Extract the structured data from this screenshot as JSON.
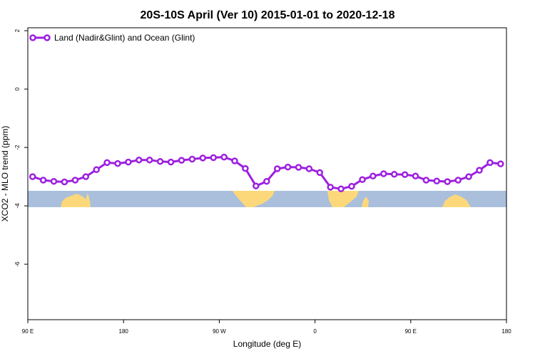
{
  "chart_data": {
    "type": "line",
    "title": "20S-10S April (Ver 10)   2015-01-01 to 2020-12-18",
    "xlabel": "Longitude (deg E)",
    "ylabel": "XCO2 - MLO trend (ppm)",
    "xlim": [
      90,
      450
    ],
    "ylim": [
      -7.9,
      2.1
    ],
    "x_tick_values": [
      90,
      162,
      234,
      306,
      378,
      450
    ],
    "x_tick_labels": [
      "90 E",
      "180",
      "90 W",
      "0",
      "90 E",
      "180"
    ],
    "y_tick_values": [
      -6,
      -4,
      -2,
      0,
      2
    ],
    "y_tick_labels": [
      "-6",
      "-4",
      "-2",
      "0",
      "2"
    ],
    "grid": false,
    "legend_position": "top-left",
    "series": [
      {
        "name": "Land (Nadir&Glint) and Ocean (Glint)",
        "color": "#9d1fe0",
        "x": [
          93.6,
          101.6,
          109.6,
          117.6,
          125.6,
          133.6,
          141.6,
          149.6,
          157.6,
          165.6,
          173.6,
          181.6,
          189.6,
          197.6,
          205.6,
          213.6,
          221.6,
          229.6,
          237.6,
          245.6,
          253.6,
          261.6,
          269.6,
          277.6,
          285.6,
          293.6,
          301.6,
          309.6,
          317.6,
          325.6,
          333.6,
          341.6,
          349.6,
          357.6,
          365.6,
          373.6,
          381.6,
          389.6,
          397.6,
          405.6,
          413.6,
          421.6,
          429.6,
          437.6,
          445.6
        ],
        "y": [
          -3.0,
          -3.12,
          -3.16,
          -3.18,
          -3.12,
          -3.0,
          -2.76,
          -2.52,
          -2.55,
          -2.5,
          -2.43,
          -2.43,
          -2.48,
          -2.5,
          -2.44,
          -2.4,
          -2.36,
          -2.35,
          -2.33,
          -2.46,
          -2.72,
          -3.32,
          -3.16,
          -2.73,
          -2.67,
          -2.68,
          -2.73,
          -2.86,
          -3.36,
          -3.42,
          -3.33,
          -3.1,
          -2.98,
          -2.9,
          -2.92,
          -2.93,
          -2.98,
          -3.12,
          -3.15,
          -3.17,
          -3.12,
          -3.0,
          -2.78,
          -2.52,
          -2.56
        ]
      }
    ],
    "colors": {
      "ocean_band": "#a9bfdc",
      "land_band": "#fcd87a",
      "axis": "#000000",
      "background": "#ffffff"
    }
  }
}
